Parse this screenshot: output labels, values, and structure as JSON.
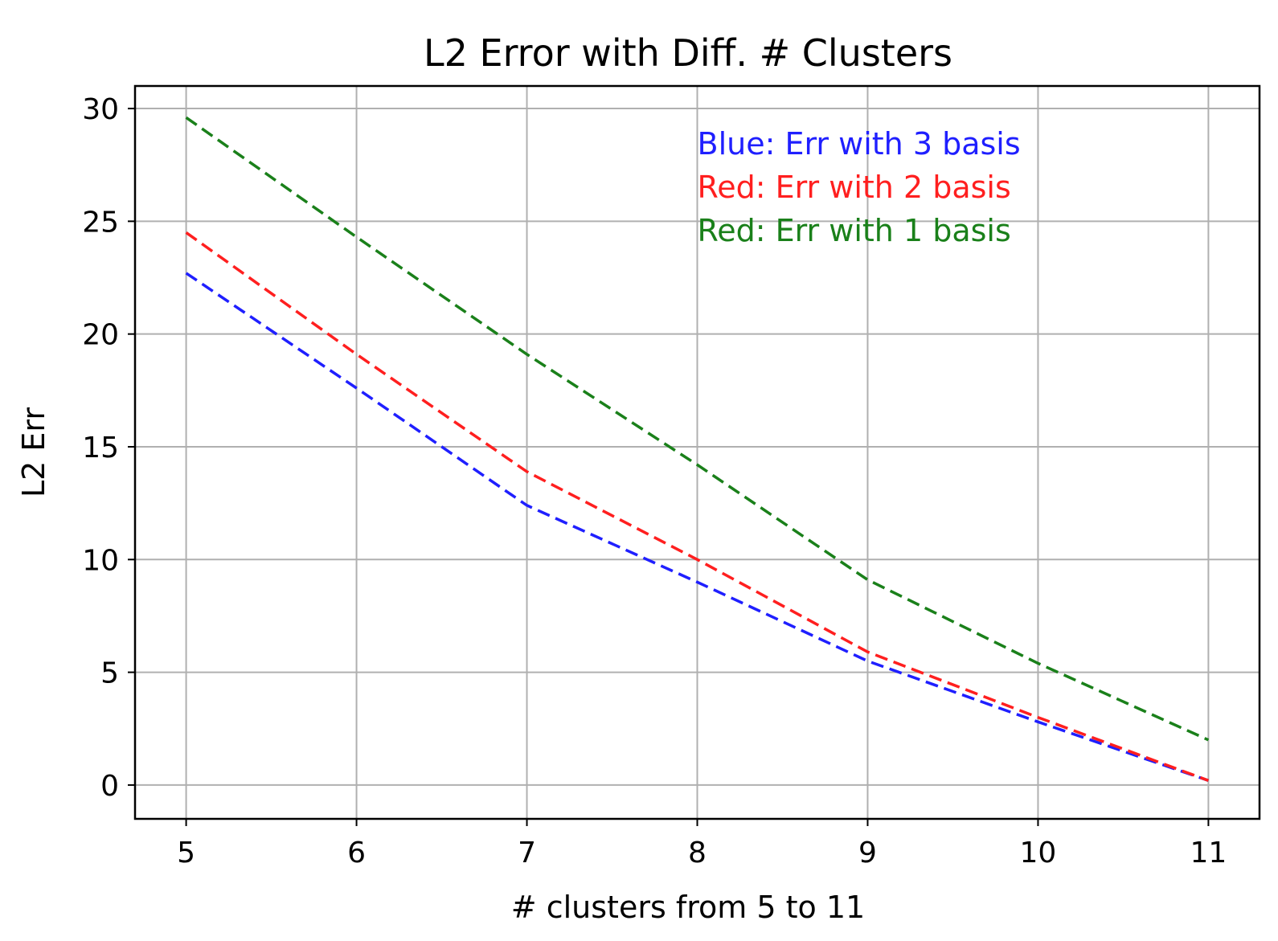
{
  "chart_data": {
    "type": "line",
    "title": "L2 Error with Diff. # Clusters",
    "xlabel": "# clusters from 5 to 11",
    "ylabel": "L2 Err",
    "x": [
      5,
      6,
      7,
      8,
      9,
      10,
      11
    ],
    "xlim": [
      4.7,
      11.3
    ],
    "ylim": [
      -1.5,
      31.0
    ],
    "xticks": [
      5,
      6,
      7,
      8,
      9,
      10,
      11
    ],
    "yticks": [
      0,
      5,
      10,
      15,
      20,
      25,
      30
    ],
    "grid": true,
    "series": [
      {
        "color": "#1f1fff",
        "style": "dashed",
        "values": [
          22.7,
          17.6,
          12.4,
          9.0,
          5.5,
          2.8,
          0.2
        ]
      },
      {
        "color": "#ff1f1f",
        "style": "dashed",
        "values": [
          24.5,
          19.1,
          13.9,
          10.0,
          5.9,
          3.0,
          0.2
        ]
      },
      {
        "color": "#1a801a",
        "style": "dashed",
        "values": [
          29.6,
          24.3,
          19.1,
          14.2,
          9.1,
          5.4,
          2.0
        ]
      }
    ],
    "annotations": [
      {
        "text": "Blue: Err with 3 basis",
        "color": "#1f1fff"
      },
      {
        "text": "Red: Err with 2 basis",
        "color": "#ff1f1f"
      },
      {
        "text": "Red: Err with 1 basis",
        "color": "#1a801a"
      }
    ]
  }
}
